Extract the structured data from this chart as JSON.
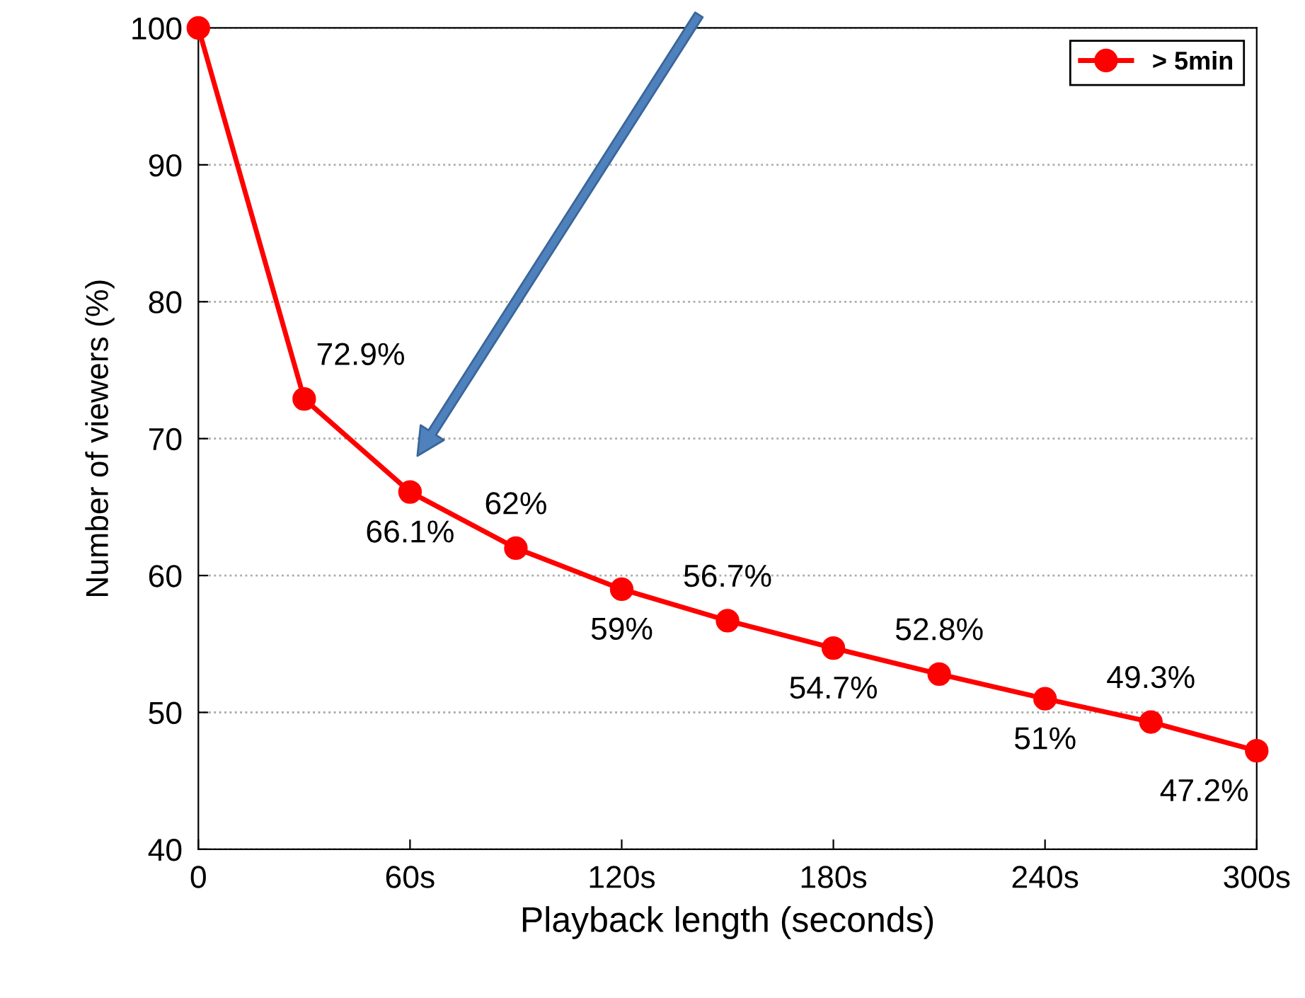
{
  "chart_data": {
    "type": "line",
    "xlabel": "Playback length (seconds)",
    "ylabel": "Number of viewers (%)",
    "x": [
      0,
      30,
      60,
      90,
      120,
      150,
      180,
      210,
      240,
      270,
      300
    ],
    "series": [
      {
        "name": "> 5min",
        "color": "#ff0000",
        "values": [
          100,
          72.9,
          66.1,
          62,
          59,
          56.7,
          54.7,
          52.8,
          51,
          49.3,
          47.2
        ],
        "value_labels": [
          null,
          "72.9%",
          "66.1%",
          "62%",
          "59%",
          "56.7%",
          "54.7%",
          "52.8%",
          "51%",
          "49.3%",
          "47.2%"
        ]
      }
    ],
    "xlim": [
      0,
      300
    ],
    "xticks": [
      0,
      {
        "value": 60,
        "label": "60s"
      },
      {
        "value": 120,
        "label": "120s"
      },
      {
        "value": 180,
        "label": "180s"
      },
      {
        "value": 240,
        "label": "240s"
      },
      {
        "value": 300,
        "label": "300s"
      }
    ],
    "ylim": [
      40,
      100
    ],
    "yticks": [
      40,
      50,
      60,
      70,
      80,
      90,
      100
    ],
    "grid": "y",
    "legend": "top right",
    "marker": "circle",
    "line_style": "solid"
  }
}
